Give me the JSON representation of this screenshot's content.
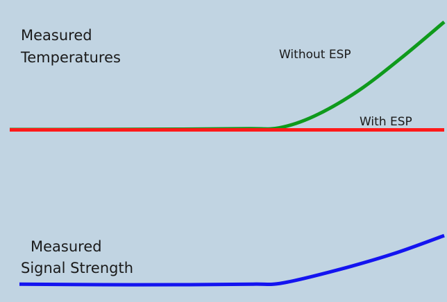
{
  "chart_data": {
    "type": "line",
    "title": "",
    "xlabel": "",
    "ylabel": "",
    "background": "#c1d4e2",
    "panels": [
      {
        "name": "temperatures",
        "label_lines": [
          "Measured",
          "Temperatures"
        ],
        "series": [
          {
            "name": "Without ESP",
            "color": "#0f9a1c",
            "points": [
              [
                0,
                0
              ],
              [
                20,
                0.005
              ],
              [
                40,
                0.02
              ],
              [
                55,
                0.05
              ],
              [
                62,
                0.1
              ],
              [
                70,
                0.8
              ],
              [
                80,
                2.3
              ],
              [
                90,
                4.3
              ],
              [
                100,
                6.5
              ]
            ]
          },
          {
            "name": "With ESP",
            "color": "#ff1a1a",
            "points": [
              [
                0,
                -0.02
              ],
              [
                100,
                -0.02
              ]
            ]
          }
        ]
      },
      {
        "name": "signal-strength",
        "label_lines": [
          "Measured",
          "Signal Strength"
        ],
        "series": [
          {
            "name": "",
            "color": "#1414f0",
            "points": [
              [
                0,
                0.05
              ],
              [
                20,
                0
              ],
              [
                40,
                0
              ],
              [
                55,
                0.05
              ],
              [
                62,
                0.15
              ],
              [
                75,
                1.3
              ],
              [
                88,
                2.7
              ],
              [
                100,
                4.3
              ]
            ]
          }
        ]
      }
    ]
  }
}
